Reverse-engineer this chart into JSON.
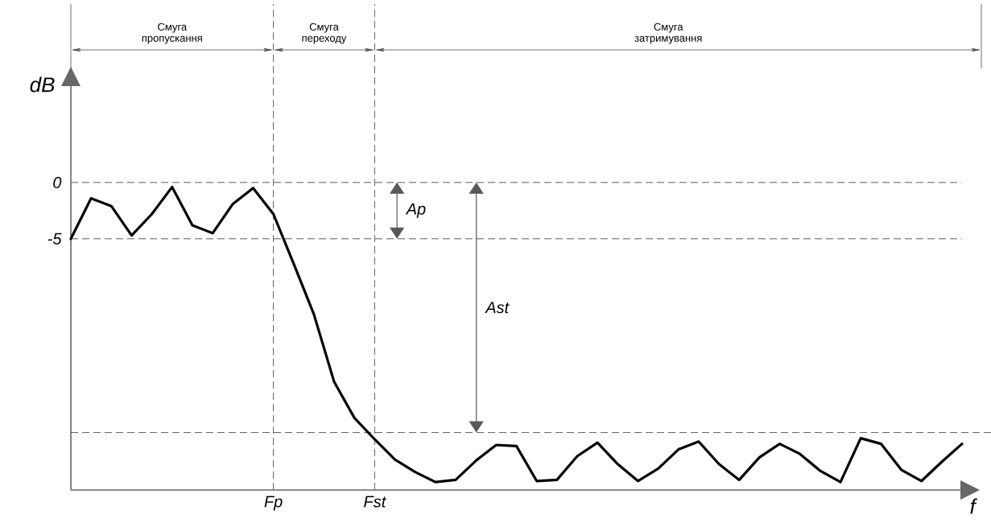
{
  "chart_data": {
    "type": "line",
    "xlabel": "f",
    "ylabel": "dB",
    "categories": [
      null,
      null,
      null,
      null,
      null,
      null,
      null,
      null,
      null,
      null,
      "Fp",
      null,
      null,
      null,
      null,
      "Fst",
      null,
      null,
      null,
      null,
      null,
      null,
      null,
      null,
      null,
      null,
      null,
      null,
      null,
      null,
      null,
      null,
      null,
      null,
      null,
      null,
      null,
      null,
      null,
      null,
      null,
      null,
      null,
      null,
      null
    ],
    "series": [
      {
        "color": "#000000",
        "values": [
          -5.0,
          -1.4,
          -2.1,
          -4.7,
          -2.8,
          -0.4,
          -3.8,
          -4.5,
          -1.9,
          -0.5,
          -2.8,
          -7.2,
          -11.7,
          -17.7,
          -20.9,
          -22.8,
          -24.6,
          -25.7,
          -26.6,
          -26.4,
          -24.7,
          -23.3,
          -23.4,
          -26.5,
          -26.4,
          -24.3,
          -23.1,
          -25.0,
          -26.5,
          -25.4,
          -23.7,
          -23.0,
          -25.0,
          -26.4,
          -24.4,
          -23.2,
          -24.1,
          -25.6,
          -26.6,
          -22.7,
          -23.2,
          -25.5,
          -26.5,
          -24.8,
          -23.2
        ]
      }
    ],
    "ylim": [
      -27.3,
      8.7
    ],
    "yticks": [
      0,
      -5
    ],
    "marker": "none",
    "line_style": "solid",
    "grid": true,
    "ref_lines": [
      {
        "axis": "y",
        "value": -22.2,
        "line_style": "dashed"
      }
    ],
    "annotations": [
      "Смуга пропускання",
      "Смуга переходу",
      "Смуга затримування",
      "Ap",
      "Ast"
    ]
  }
}
